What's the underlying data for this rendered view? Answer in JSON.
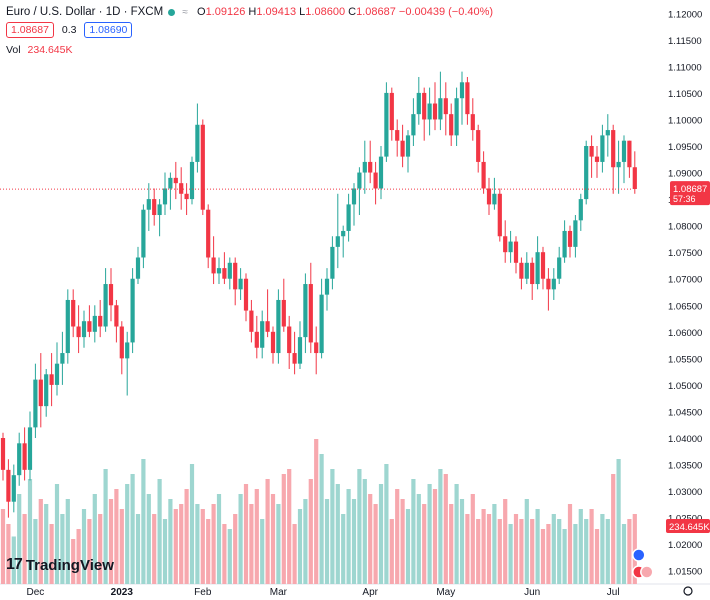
{
  "header": {
    "title": "Euro / U.S. Dollar · 1D · FXCM",
    "ohlc": {
      "open_label": "O",
      "open": "1.09126",
      "high_label": "H",
      "high": "1.09413",
      "low_label": "L",
      "low": "1.08600",
      "close_label": "C",
      "close": "1.08687",
      "change": "−0.00439 (−0.40%)"
    },
    "sell_price": "1.08687",
    "spread": "0.3",
    "buy_price": "1.08690",
    "volume_label": "Vol",
    "volume_value": "234.645K"
  },
  "price_marker": {
    "value": "1.08687",
    "countdown": "57:36"
  },
  "volume_marker": "234.645K",
  "logo_text": "TradingView",
  "colors": {
    "up": "#26a69a",
    "down": "#f23645",
    "up_vol": "#9ed6d0",
    "down_vol": "#f7a8ae",
    "buy": "#2962ff"
  },
  "chart_data": {
    "type": "candlestick",
    "title": "Euro / U.S. Dollar · 1D · FXCM",
    "ylim": [
      1.0125,
      1.1225
    ],
    "y_ticks": [
      "1.12000",
      "1.11500",
      "1.11000",
      "1.10500",
      "1.10000",
      "1.09500",
      "1.09000",
      "1.08500",
      "1.08000",
      "1.07500",
      "1.07000",
      "1.06500",
      "1.06000",
      "1.05500",
      "1.05000",
      "1.04500",
      "1.04000",
      "1.03500",
      "1.03000",
      "1.02500",
      "1.02000",
      "1.01500"
    ],
    "x_labels": [
      {
        "label": "Dec",
        "index": 6
      },
      {
        "label": "2023",
        "index": 22
      },
      {
        "label": "Feb",
        "index": 37
      },
      {
        "label": "Mar",
        "index": 51
      },
      {
        "label": "Apr",
        "index": 68
      },
      {
        "label": "May",
        "index": 82
      },
      {
        "label": "Jun",
        "index": 98
      },
      {
        "label": "Jul",
        "index": 113
      }
    ],
    "last_close": 1.08687,
    "current_volume": 234645,
    "series": [
      {
        "name": "Price",
        "points": [
          [
            1.04,
            1.041,
            1.032,
            1.034
          ],
          [
            1.034,
            1.036,
            1.025,
            1.028
          ],
          [
            1.028,
            1.035,
            1.026,
            1.033
          ],
          [
            1.033,
            1.041,
            1.031,
            1.039
          ],
          [
            1.039,
            1.042,
            1.032,
            1.034
          ],
          [
            1.034,
            1.045,
            1.032,
            1.042
          ],
          [
            1.042,
            1.054,
            1.04,
            1.051
          ],
          [
            1.051,
            1.056,
            1.042,
            1.046
          ],
          [
            1.046,
            1.053,
            1.044,
            1.052
          ],
          [
            1.052,
            1.056,
            1.046,
            1.05
          ],
          [
            1.05,
            1.058,
            1.048,
            1.054
          ],
          [
            1.054,
            1.06,
            1.05,
            1.056
          ],
          [
            1.056,
            1.068,
            1.054,
            1.066
          ],
          [
            1.066,
            1.068,
            1.059,
            1.061
          ],
          [
            1.061,
            1.065,
            1.056,
            1.059
          ],
          [
            1.059,
            1.064,
            1.057,
            1.062
          ],
          [
            1.062,
            1.065,
            1.059,
            1.06
          ],
          [
            1.06,
            1.065,
            1.058,
            1.063
          ],
          [
            1.063,
            1.066,
            1.059,
            1.061
          ],
          [
            1.061,
            1.072,
            1.06,
            1.069
          ],
          [
            1.069,
            1.072,
            1.062,
            1.065
          ],
          [
            1.065,
            1.066,
            1.058,
            1.061
          ],
          [
            1.061,
            1.062,
            1.052,
            1.055
          ],
          [
            1.055,
            1.06,
            1.048,
            1.058
          ],
          [
            1.058,
            1.072,
            1.056,
            1.07
          ],
          [
            1.07,
            1.076,
            1.069,
            1.074
          ],
          [
            1.074,
            1.084,
            1.072,
            1.083
          ],
          [
            1.083,
            1.088,
            1.079,
            1.085
          ],
          [
            1.085,
            1.087,
            1.08,
            1.082
          ],
          [
            1.082,
            1.085,
            1.078,
            1.084
          ],
          [
            1.084,
            1.09,
            1.082,
            1.087
          ],
          [
            1.087,
            1.09,
            1.083,
            1.089
          ],
          [
            1.089,
            1.092,
            1.085,
            1.088
          ],
          [
            1.088,
            1.091,
            1.083,
            1.086
          ],
          [
            1.086,
            1.088,
            1.082,
            1.085
          ],
          [
            1.085,
            1.093,
            1.084,
            1.092
          ],
          [
            1.092,
            1.103,
            1.09,
            1.099
          ],
          [
            1.099,
            1.1,
            1.082,
            1.083
          ],
          [
            1.083,
            1.084,
            1.072,
            1.074
          ],
          [
            1.074,
            1.078,
            1.069,
            1.071
          ],
          [
            1.071,
            1.074,
            1.069,
            1.072
          ],
          [
            1.072,
            1.075,
            1.069,
            1.07
          ],
          [
            1.07,
            1.074,
            1.068,
            1.073
          ],
          [
            1.073,
            1.074,
            1.065,
            1.068
          ],
          [
            1.068,
            1.072,
            1.066,
            1.07
          ],
          [
            1.07,
            1.071,
            1.062,
            1.064
          ],
          [
            1.064,
            1.066,
            1.058,
            1.06
          ],
          [
            1.06,
            1.063,
            1.055,
            1.057
          ],
          [
            1.057,
            1.064,
            1.055,
            1.062
          ],
          [
            1.062,
            1.068,
            1.059,
            1.06
          ],
          [
            1.06,
            1.061,
            1.054,
            1.056
          ],
          [
            1.056,
            1.068,
            1.054,
            1.066
          ],
          [
            1.066,
            1.07,
            1.06,
            1.061
          ],
          [
            1.061,
            1.063,
            1.053,
            1.056
          ],
          [
            1.056,
            1.06,
            1.052,
            1.054
          ],
          [
            1.054,
            1.062,
            1.053,
            1.059
          ],
          [
            1.059,
            1.071,
            1.056,
            1.069
          ],
          [
            1.069,
            1.073,
            1.056,
            1.058
          ],
          [
            1.058,
            1.061,
            1.052,
            1.056
          ],
          [
            1.056,
            1.07,
            1.055,
            1.067
          ],
          [
            1.067,
            1.072,
            1.064,
            1.07
          ],
          [
            1.07,
            1.078,
            1.068,
            1.076
          ],
          [
            1.076,
            1.086,
            1.072,
            1.078
          ],
          [
            1.078,
            1.08,
            1.074,
            1.079
          ],
          [
            1.079,
            1.086,
            1.077,
            1.084
          ],
          [
            1.084,
            1.088,
            1.08,
            1.087
          ],
          [
            1.087,
            1.091,
            1.082,
            1.09
          ],
          [
            1.09,
            1.096,
            1.086,
            1.092
          ],
          [
            1.092,
            1.096,
            1.088,
            1.09
          ],
          [
            1.09,
            1.092,
            1.084,
            1.087
          ],
          [
            1.087,
            1.095,
            1.085,
            1.093
          ],
          [
            1.093,
            1.107,
            1.092,
            1.105
          ],
          [
            1.105,
            1.106,
            1.096,
            1.098
          ],
          [
            1.098,
            1.1,
            1.093,
            1.096
          ],
          [
            1.096,
            1.099,
            1.091,
            1.093
          ],
          [
            1.093,
            1.098,
            1.09,
            1.097
          ],
          [
            1.097,
            1.104,
            1.095,
            1.101
          ],
          [
            1.101,
            1.108,
            1.099,
            1.105
          ],
          [
            1.105,
            1.106,
            1.096,
            1.1
          ],
          [
            1.1,
            1.106,
            1.097,
            1.103
          ],
          [
            1.103,
            1.107,
            1.098,
            1.1
          ],
          [
            1.1,
            1.109,
            1.098,
            1.104
          ],
          [
            1.104,
            1.107,
            1.097,
            1.101
          ],
          [
            1.101,
            1.103,
            1.095,
            1.097
          ],
          [
            1.097,
            1.106,
            1.095,
            1.104
          ],
          [
            1.104,
            1.109,
            1.099,
            1.107
          ],
          [
            1.107,
            1.108,
            1.099,
            1.101
          ],
          [
            1.101,
            1.104,
            1.096,
            1.098
          ],
          [
            1.098,
            1.099,
            1.09,
            1.092
          ],
          [
            1.092,
            1.094,
            1.086,
            1.087
          ],
          [
            1.087,
            1.089,
            1.082,
            1.084
          ],
          [
            1.084,
            1.089,
            1.083,
            1.086
          ],
          [
            1.086,
            1.087,
            1.077,
            1.078
          ],
          [
            1.078,
            1.081,
            1.073,
            1.075
          ],
          [
            1.075,
            1.079,
            1.073,
            1.077
          ],
          [
            1.077,
            1.078,
            1.071,
            1.073
          ],
          [
            1.073,
            1.074,
            1.068,
            1.07
          ],
          [
            1.07,
            1.075,
            1.069,
            1.073
          ],
          [
            1.073,
            1.074,
            1.066,
            1.069
          ],
          [
            1.069,
            1.078,
            1.068,
            1.075
          ],
          [
            1.075,
            1.076,
            1.068,
            1.07
          ],
          [
            1.07,
            1.072,
            1.064,
            1.068
          ],
          [
            1.068,
            1.072,
            1.066,
            1.07
          ],
          [
            1.07,
            1.076,
            1.069,
            1.074
          ],
          [
            1.074,
            1.081,
            1.073,
            1.079
          ],
          [
            1.079,
            1.08,
            1.074,
            1.076
          ],
          [
            1.076,
            1.082,
            1.074,
            1.081
          ],
          [
            1.081,
            1.086,
            1.079,
            1.085
          ],
          [
            1.085,
            1.096,
            1.084,
            1.095
          ],
          [
            1.095,
            1.097,
            1.089,
            1.093
          ],
          [
            1.093,
            1.095,
            1.089,
            1.092
          ],
          [
            1.092,
            1.099,
            1.09,
            1.097
          ],
          [
            1.097,
            1.101,
            1.093,
            1.098
          ],
          [
            1.098,
            1.099,
            1.086,
            1.091
          ],
          [
            1.091,
            1.096,
            1.086,
            1.092
          ],
          [
            1.092,
            1.097,
            1.088,
            1.096
          ],
          [
            1.096,
            1.096,
            1.089,
            1.091
          ],
          [
            1.091,
            1.094,
            1.086,
            1.0869
          ]
        ]
      },
      {
        "name": "Vol",
        "values": [
          150,
          120,
          95,
          180,
          140,
          210,
          130,
          170,
          160,
          120,
          200,
          140,
          170,
          90,
          110,
          150,
          130,
          180,
          140,
          230,
          170,
          190,
          150,
          200,
          220,
          140,
          250,
          180,
          140,
          210,
          130,
          170,
          150,
          160,
          190,
          240,
          160,
          150,
          130,
          160,
          180,
          120,
          110,
          140,
          180,
          200,
          160,
          190,
          130,
          210,
          180,
          160,
          220,
          230,
          120,
          150,
          170,
          210,
          290,
          260,
          170,
          230,
          200,
          140,
          190,
          170,
          230,
          210,
          180,
          160,
          200,
          240,
          130,
          190,
          170,
          150,
          210,
          180,
          160,
          200,
          190,
          230,
          220,
          160,
          200,
          170,
          140,
          180,
          130,
          150,
          140,
          160,
          130,
          170,
          120,
          140,
          130,
          170,
          130,
          150,
          110,
          120,
          140,
          130,
          110,
          160,
          120,
          150,
          130,
          150,
          110,
          140,
          130,
          220,
          250,
          120,
          130,
          140
        ]
      }
    ]
  }
}
